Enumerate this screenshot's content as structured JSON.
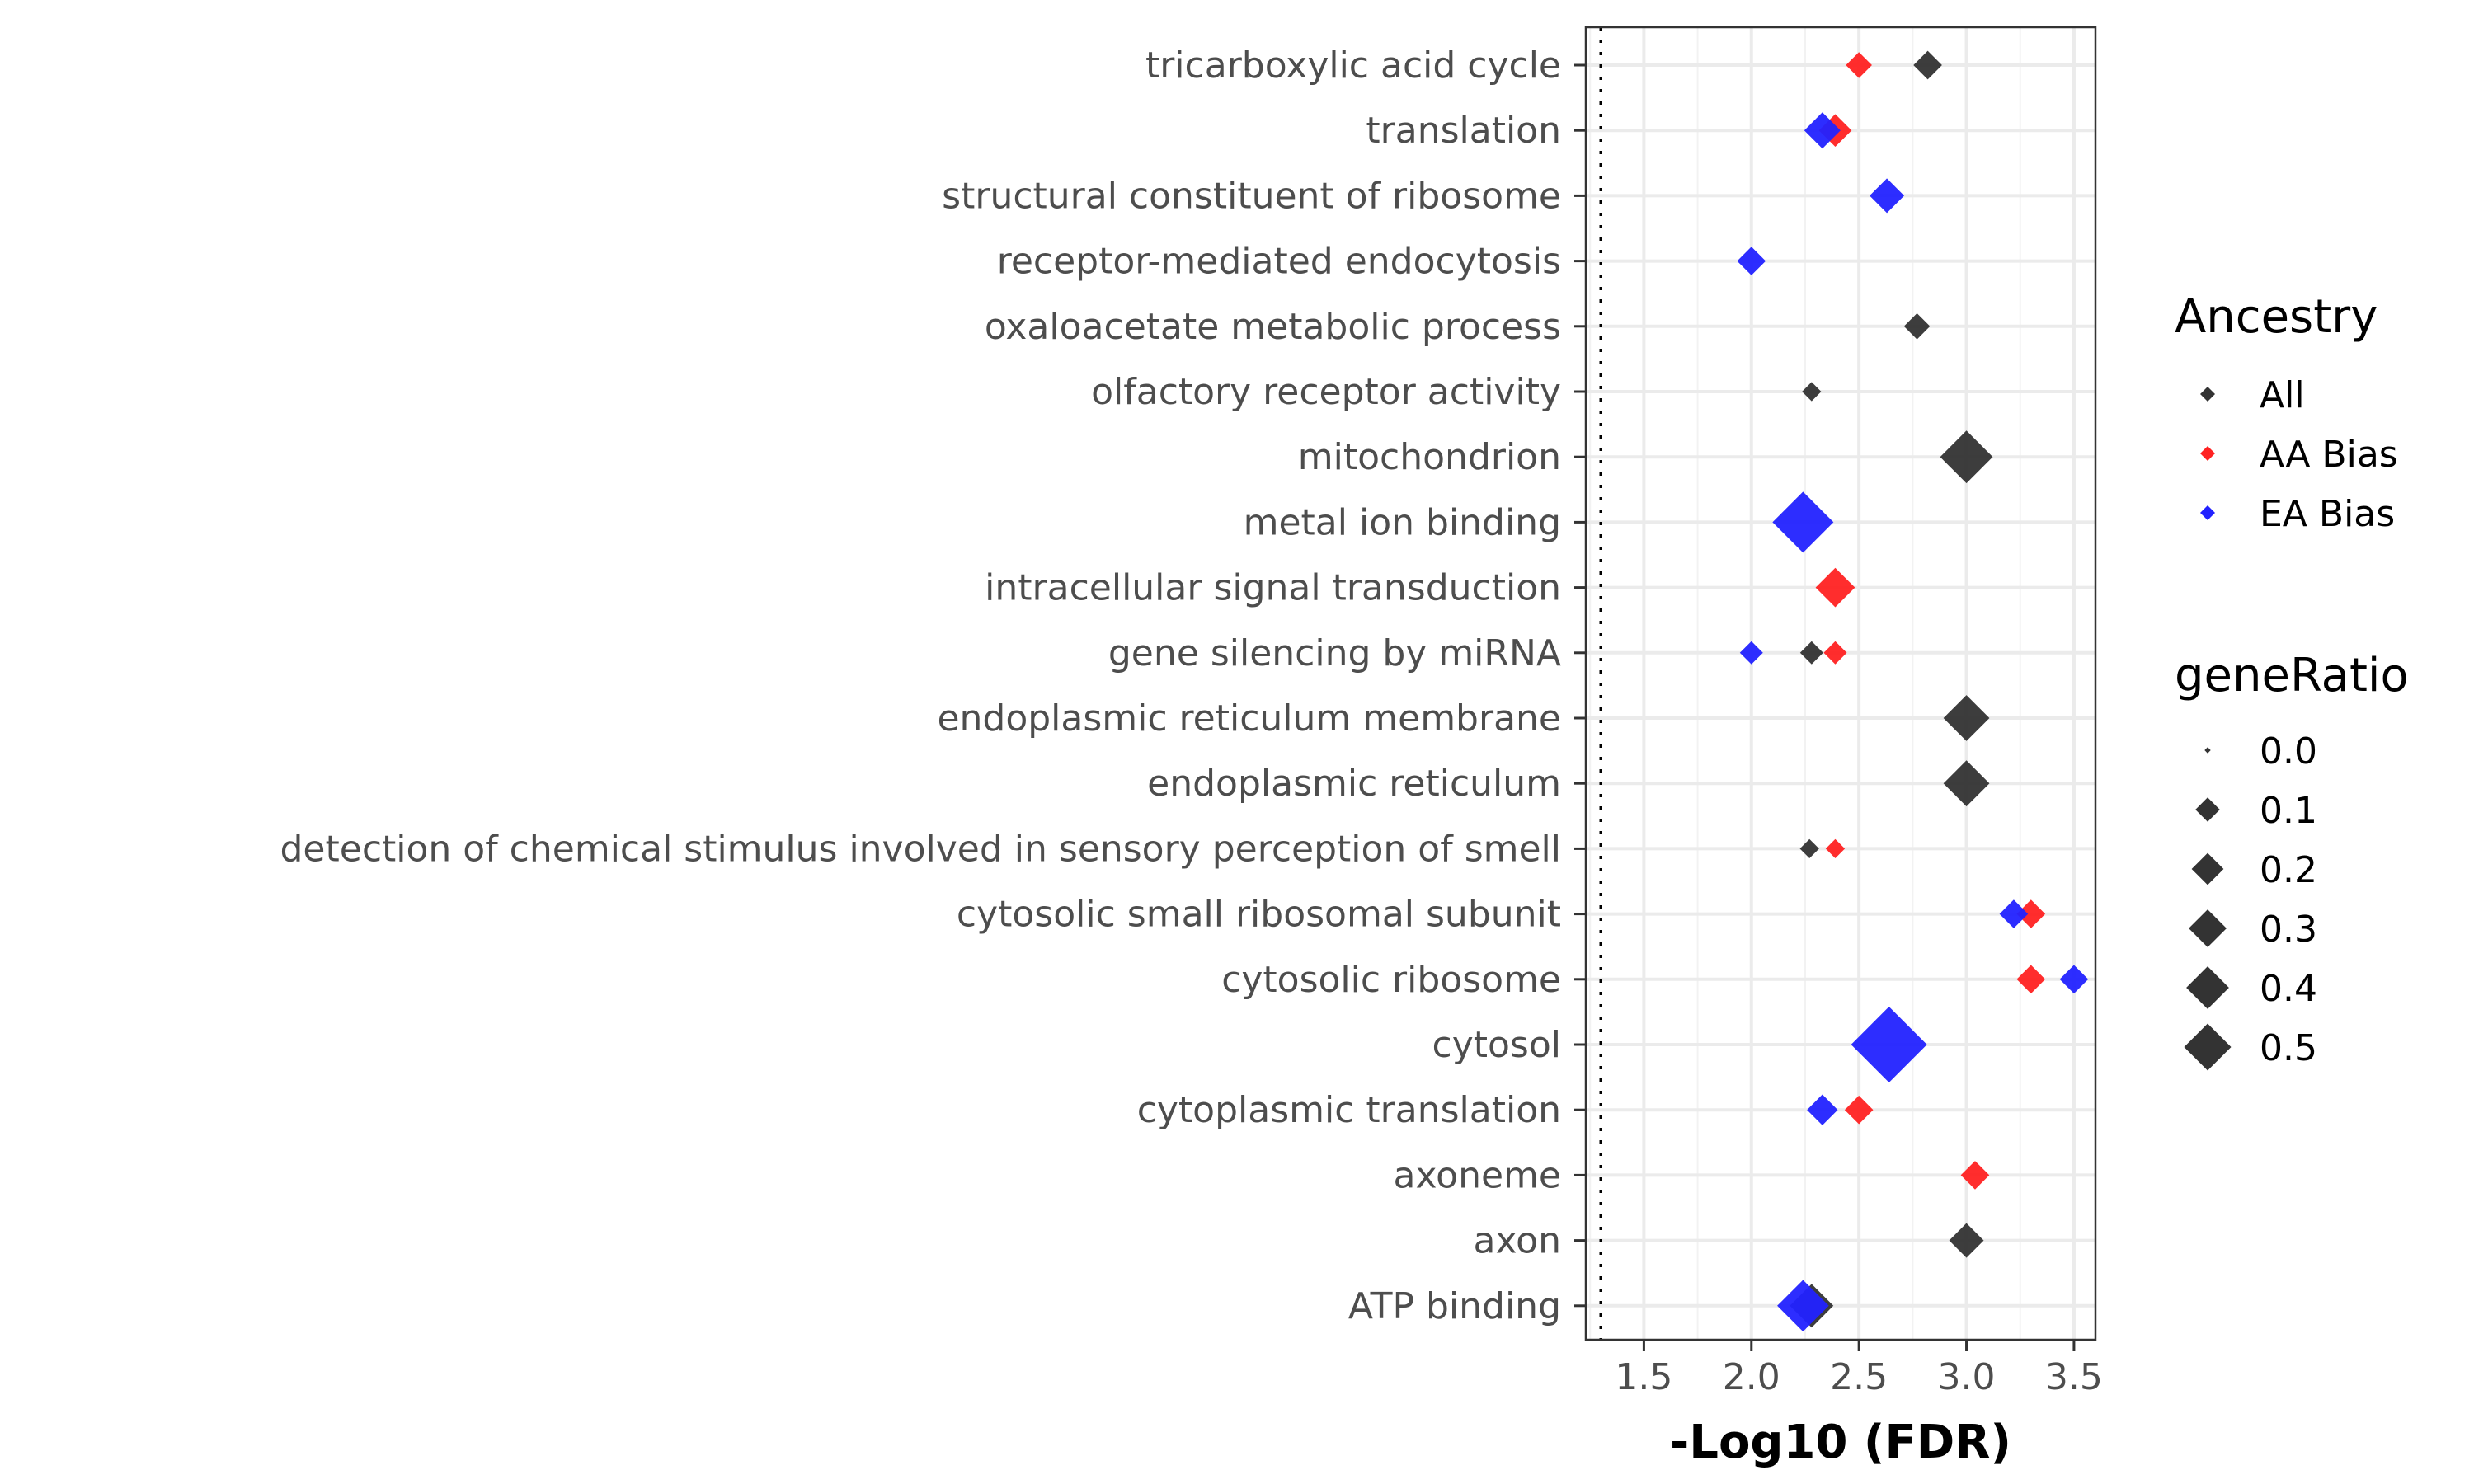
{
  "chart_data": {
    "type": "scatter",
    "xlabel": "-Log10 (FDR)",
    "ylabel": "",
    "title": "",
    "xlim": [
      1.23,
      3.6
    ],
    "x_ticks": [
      "1.5",
      "2.0",
      "2.5",
      "3.0",
      "3.5"
    ],
    "x_tick_values": [
      1.5,
      2.0,
      2.5,
      3.0,
      3.5
    ],
    "reference_line_x": 1.3,
    "grid": true,
    "categories": [
      "tricarboxylic acid cycle",
      "translation",
      "structural constituent of ribosome",
      "receptor-mediated endocytosis",
      "oxaloacetate metabolic process",
      "olfactory receptor activity",
      "mitochondrion",
      "metal ion binding",
      "intracellular signal transduction",
      "gene silencing by miRNA",
      "endoplasmic reticulum membrane",
      "endoplasmic reticulum",
      "detection of chemical stimulus involved in sensory perception of smell",
      "cytosolic small ribosomal subunit",
      "cytosolic ribosome",
      "cytosol",
      "cytoplasmic translation",
      "axoneme",
      "axon",
      "ATP binding"
    ],
    "series": [
      {
        "name": "All",
        "color": "#333333",
        "points": [
          {
            "category": "tricarboxylic acid cycle",
            "x": 2.82,
            "geneRatio": 0.04
          },
          {
            "category": "oxaloacetate metabolic process",
            "x": 2.77,
            "geneRatio": 0.03
          },
          {
            "category": "olfactory receptor activity",
            "x": 2.28,
            "geneRatio": 0.01
          },
          {
            "category": "mitochondrion",
            "x": 3.0,
            "geneRatio": 0.21
          },
          {
            "category": "gene silencing by miRNA",
            "x": 2.28,
            "geneRatio": 0.02
          },
          {
            "category": "endoplasmic reticulum membrane",
            "x": 3.0,
            "geneRatio": 0.15
          },
          {
            "category": "endoplasmic reticulum",
            "x": 3.0,
            "geneRatio": 0.15
          },
          {
            "category": "detection of chemical stimulus involved in sensory perception of smell",
            "x": 2.27,
            "geneRatio": 0.01
          },
          {
            "category": "axon",
            "x": 3.0,
            "geneRatio": 0.07
          },
          {
            "category": "ATP binding",
            "x": 2.28,
            "geneRatio": 0.13
          }
        ]
      },
      {
        "name": "AA Bias",
        "color": "#ff2222",
        "points": [
          {
            "category": "tricarboxylic acid cycle",
            "x": 2.5,
            "geneRatio": 0.03
          },
          {
            "category": "translation",
            "x": 2.39,
            "geneRatio": 0.06
          },
          {
            "category": "intracellular signal transduction",
            "x": 2.39,
            "geneRatio": 0.1
          },
          {
            "category": "gene silencing by miRNA",
            "x": 2.39,
            "geneRatio": 0.02
          },
          {
            "category": "detection of chemical stimulus involved in sensory perception of smell",
            "x": 2.39,
            "geneRatio": 0.01
          },
          {
            "category": "cytosolic small ribosomal subunit",
            "x": 3.3,
            "geneRatio": 0.04
          },
          {
            "category": "cytosolic ribosome",
            "x": 3.3,
            "geneRatio": 0.04
          },
          {
            "category": "cytoplasmic translation",
            "x": 2.5,
            "geneRatio": 0.04
          },
          {
            "category": "axoneme",
            "x": 3.04,
            "geneRatio": 0.04
          }
        ]
      },
      {
        "name": "EA Bias",
        "color": "#2222ff",
        "points": [
          {
            "category": "translation",
            "x": 2.33,
            "geneRatio": 0.08
          },
          {
            "category": "structural constituent of ribosome",
            "x": 2.63,
            "geneRatio": 0.07
          },
          {
            "category": "receptor-mediated endocytosis",
            "x": 2.0,
            "geneRatio": 0.04
          },
          {
            "category": "metal ion binding",
            "x": 2.24,
            "geneRatio": 0.3
          },
          {
            "category": "gene silencing by miRNA",
            "x": 2.0,
            "geneRatio": 0.02
          },
          {
            "category": "cytosolic small ribosomal subunit",
            "x": 3.22,
            "geneRatio": 0.04
          },
          {
            "category": "cytosolic ribosome",
            "x": 3.5,
            "geneRatio": 0.04
          },
          {
            "category": "cytosol",
            "x": 2.64,
            "geneRatio": 0.5
          },
          {
            "category": "cytoplasmic translation",
            "x": 2.33,
            "geneRatio": 0.05
          },
          {
            "category": "ATP binding",
            "x": 2.24,
            "geneRatio": 0.2
          }
        ]
      }
    ],
    "legend": {
      "placement": "right",
      "color_title": "Ancestry",
      "color_entries": [
        {
          "label": "All",
          "color": "#333333"
        },
        {
          "label": "AA Bias",
          "color": "#ff2222"
        },
        {
          "label": "EA Bias",
          "color": "#2222ff"
        }
      ],
      "size_title": "geneRatio",
      "size_entries": [
        {
          "label": "0.0",
          "value": 0.0
        },
        {
          "label": "0.1",
          "value": 0.1
        },
        {
          "label": "0.2",
          "value": 0.2
        },
        {
          "label": "0.3",
          "value": 0.3
        },
        {
          "label": "0.4",
          "value": 0.4
        },
        {
          "label": "0.5",
          "value": 0.5
        }
      ]
    }
  }
}
